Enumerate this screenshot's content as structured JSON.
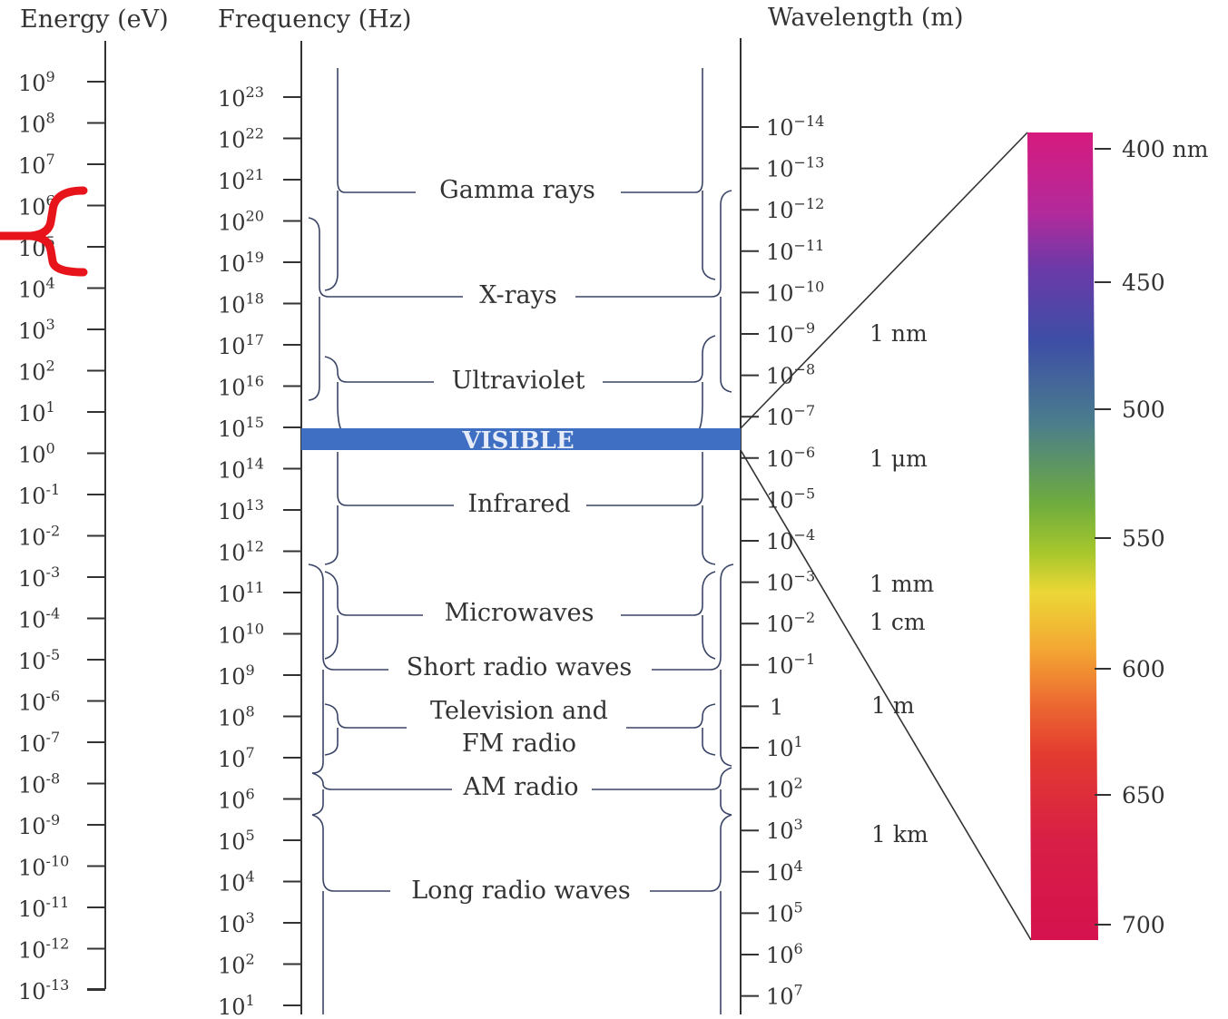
{
  "headers": {
    "energy": "Energy (eV)",
    "frequency": "Frequency (Hz)",
    "wavelength": "Wavelength (m)"
  },
  "energy_ticks": [
    "9",
    "8",
    "7",
    "6",
    "5",
    "4",
    "3",
    "2",
    "1",
    "0",
    "-1",
    "-2",
    "-3",
    "-4",
    "-5",
    "-6",
    "-7",
    "-8",
    "-9",
    "-10",
    "-11",
    "-12",
    "-13"
  ],
  "frequency_ticks": [
    "23",
    "22",
    "21",
    "20",
    "19",
    "18",
    "17",
    "16",
    "15",
    "14",
    "13",
    "12",
    "11",
    "10",
    "9",
    "8",
    "7",
    "6",
    "5",
    "4",
    "3",
    "2",
    "1"
  ],
  "wavelength_ticks": [
    "10^-14",
    "10^-13",
    "10^-12",
    "10^-11",
    "10^-10",
    "10^-9",
    "10^-8",
    "10^-7",
    "10^-6",
    "10^-5",
    "10^-4",
    "10^-3",
    "10^-2",
    "10^-1",
    "1",
    "10^1",
    "10^2",
    "10^3",
    "10^4",
    "10^5",
    "10^6",
    "10^7"
  ],
  "bands": {
    "gamma": "Gamma rays",
    "xray": "X-rays",
    "uv": "Ultraviolet",
    "visible": "VISIBLE",
    "ir": "Infrared",
    "micro": "Microwaves",
    "short_radio": "Short radio waves",
    "tv_line1": "Television and",
    "tv_line2": "FM radio",
    "am": "AM radio",
    "long_radio": "Long radio waves"
  },
  "wavelength_names": {
    "nm": "1 nm",
    "um": "1 μm",
    "mm": "1 mm",
    "cm": "1 cm",
    "m": "1 m",
    "km": "1 km"
  },
  "spectrum_ticks": [
    "400 nm",
    "450",
    "500",
    "550",
    "600",
    "650",
    "700"
  ],
  "colors": {
    "visible_band": "#3f6fc2",
    "highlight_brace": "#e8141c"
  }
}
